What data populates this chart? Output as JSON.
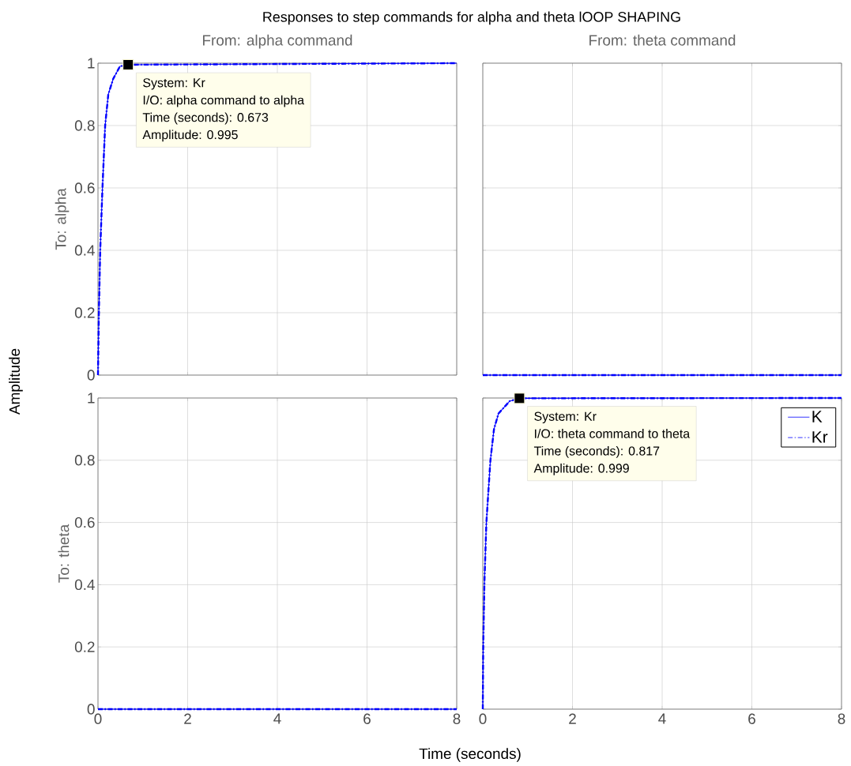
{
  "chart_data": [
    {
      "type": "line",
      "title": "From: alpha command",
      "ylabel": "To: alpha",
      "xlim": [
        0,
        8
      ],
      "ylim": [
        0,
        1
      ],
      "xticks": [
        0,
        2,
        4,
        6,
        8
      ],
      "yticks": [
        0,
        0.2,
        0.4,
        0.6,
        0.8,
        1
      ],
      "grid": true,
      "tick_labels": "y",
      "series": [
        {
          "color": "#0000ff",
          "line_style": "solid",
          "x": [
            0,
            0.02,
            0.05,
            0.1,
            0.16,
            0.23,
            0.34,
            0.49,
            0.673,
            8
          ],
          "values": [
            0,
            0.2,
            0.4,
            0.6,
            0.8,
            0.9,
            0.95,
            0.99,
            0.995,
            1
          ]
        },
        {
          "color": "#0000ff",
          "line_style": "dotted",
          "x": [
            0,
            0.02,
            0.05,
            0.1,
            0.16,
            0.23,
            0.34,
            0.49,
            0.673,
            8
          ],
          "values": [
            0,
            0.2,
            0.4,
            0.6,
            0.8,
            0.9,
            0.95,
            0.99,
            0.995,
            1
          ]
        }
      ],
      "annotations": [
        "Responses to step commands for alpha and theta lOOP SHAPING",
        "Amplitude",
        "Time (seconds)",
        {
          "text": "System: Kr",
          "x": 0.673,
          "y": 0.995
        },
        "I/O: alpha command to alpha",
        "Time (seconds): 0.673",
        "Amplitude: 0.995"
      ]
    },
    {
      "type": "line",
      "title": "From: theta command",
      "xlim": [
        0,
        8
      ],
      "ylim": [
        0,
        1
      ],
      "xticks": [
        0,
        2,
        4,
        6,
        8
      ],
      "yticks": [
        0,
        0.2,
        0.4,
        0.6,
        0.8,
        1
      ],
      "grid": true,
      "tick_labels": false,
      "series": [
        {
          "color": "#0000ff",
          "line_style": "solid",
          "x": [
            0,
            8
          ],
          "values": [
            0,
            0
          ]
        },
        {
          "color": "#0000ff",
          "line_style": "dotted",
          "x": [
            0,
            8
          ],
          "values": [
            0,
            0
          ]
        }
      ]
    },
    {
      "type": "line",
      "ylabel": "To: theta",
      "xlim": [
        0,
        8
      ],
      "ylim": [
        0,
        1
      ],
      "xticks": [
        0,
        2,
        4,
        6,
        8
      ],
      "yticks": [
        0,
        0.2,
        0.4,
        0.6,
        0.8,
        1
      ],
      "grid": true,
      "series": [
        {
          "color": "#0000ff",
          "line_style": "solid",
          "x": [
            0,
            8
          ],
          "values": [
            0,
            0
          ]
        },
        {
          "color": "#0000ff",
          "line_style": "dotted",
          "x": [
            0,
            8
          ],
          "values": [
            0,
            0
          ]
        }
      ]
    },
    {
      "type": "line",
      "xlim": [
        0,
        8
      ],
      "ylim": [
        0,
        1
      ],
      "xticks": [
        0,
        2,
        4,
        6,
        8
      ],
      "yticks": [
        0,
        0.2,
        0.4,
        0.6,
        0.8,
        1
      ],
      "grid": true,
      "tick_labels": "x",
      "legend": "top right",
      "series": [
        {
          "name": "K",
          "color": "#0000ff",
          "line_style": "solid",
          "x": [
            0,
            0.01,
            0.035,
            0.08,
            0.17,
            0.25,
            0.35,
            0.6,
            0.817,
            8
          ],
          "values": [
            0,
            0.2,
            0.4,
            0.6,
            0.8,
            0.9,
            0.95,
            0.99,
            0.999,
            1
          ]
        },
        {
          "name": "Kr",
          "color": "#0000ff",
          "line_style": "dotted",
          "x": [
            0,
            0.01,
            0.035,
            0.08,
            0.17,
            0.25,
            0.35,
            0.6,
            0.817,
            8
          ],
          "values": [
            0,
            0.2,
            0.4,
            0.6,
            0.8,
            0.9,
            0.95,
            0.99,
            0.999,
            1
          ]
        }
      ],
      "annotations": [
        {
          "text": "System: Kr",
          "x": 0.817,
          "y": 0.999
        },
        "I/O: theta command to theta",
        "Time (seconds): 0.817",
        "Amplitude: 0.999"
      ]
    }
  ]
}
